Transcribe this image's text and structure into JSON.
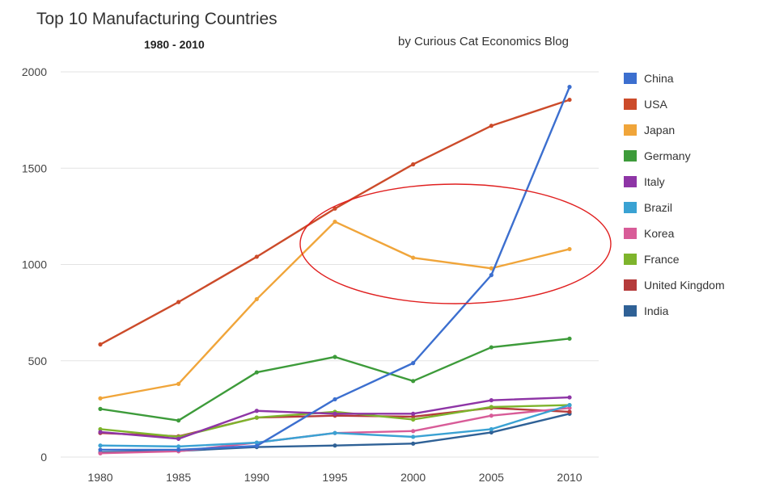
{
  "chart_data": {
    "type": "line",
    "title": "Top 10 Manufacturing Countries",
    "subtitle": "1980 - 2010",
    "credit": "by Curious Cat Economics Blog",
    "x": [
      "1980",
      "1985",
      "1990",
      "1995",
      "2000",
      "2005",
      "2010"
    ],
    "ylim": [
      0,
      2000
    ],
    "yticks": [
      0,
      500,
      1000,
      1500,
      2000
    ],
    "grid": true,
    "legend_position": "right",
    "series": [
      {
        "name": "China",
        "color": "#3c6fcf",
        "values": [
          38,
          38,
          58,
          300,
          488,
          945,
          1922
        ]
      },
      {
        "name": "USA",
        "color": "#cc4b2a",
        "values": [
          585,
          805,
          1040,
          1290,
          1520,
          1720,
          1855
        ]
      },
      {
        "name": "Japan",
        "color": "#f0a53a",
        "values": [
          305,
          380,
          820,
          1222,
          1035,
          980,
          1080
        ]
      },
      {
        "name": "Germany",
        "color": "#3d9b3a",
        "values": [
          250,
          190,
          440,
          520,
          395,
          570,
          615
        ]
      },
      {
        "name": "Italy",
        "color": "#8e35a6",
        "values": [
          130,
          95,
          240,
          225,
          225,
          295,
          310
        ]
      },
      {
        "name": "Brazil",
        "color": "#3aa2d3",
        "values": [
          60,
          55,
          75,
          125,
          105,
          145,
          270
        ]
      },
      {
        "name": "Korea",
        "color": "#d85c98",
        "values": [
          20,
          30,
          75,
          125,
          135,
          215,
          255
        ]
      },
      {
        "name": "France",
        "color": "#7eb42c",
        "values": [
          145,
          105,
          205,
          235,
          195,
          260,
          270
        ]
      },
      {
        "name": "United Kingdom",
        "color": "#b53b3b",
        "values": [
          125,
          108,
          205,
          215,
          210,
          255,
          235
        ]
      },
      {
        "name": "India",
        "color": "#2f6196",
        "values": [
          25,
          32,
          52,
          60,
          70,
          128,
          225
        ]
      }
    ],
    "annotation": {
      "shape": "ellipse",
      "color": "#e02020"
    }
  }
}
